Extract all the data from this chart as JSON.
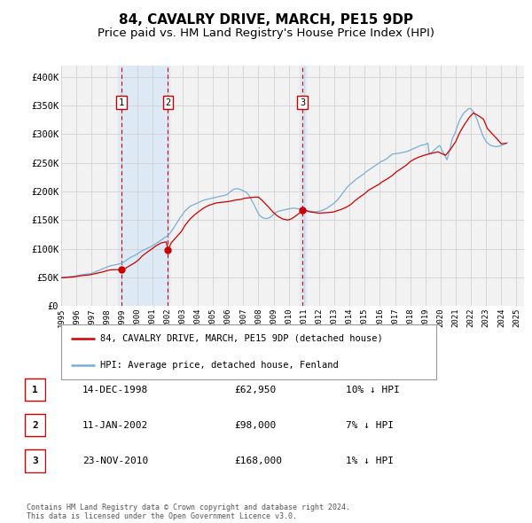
{
  "title": "84, CAVALRY DRIVE, MARCH, PE15 9DP",
  "subtitle": "Price paid vs. HM Land Registry's House Price Index (HPI)",
  "title_fontsize": 11,
  "subtitle_fontsize": 9.5,
  "xlim": [
    1995.0,
    2025.5
  ],
  "ylim": [
    0,
    420000
  ],
  "yticks": [
    0,
    50000,
    100000,
    150000,
    200000,
    250000,
    300000,
    350000,
    400000
  ],
  "ytick_labels": [
    "£0",
    "£50K",
    "£100K",
    "£150K",
    "£200K",
    "£250K",
    "£300K",
    "£350K",
    "£400K"
  ],
  "xtick_years": [
    1995,
    1996,
    1997,
    1998,
    1999,
    2000,
    2001,
    2002,
    2003,
    2004,
    2005,
    2006,
    2007,
    2008,
    2009,
    2010,
    2011,
    2012,
    2013,
    2014,
    2015,
    2016,
    2017,
    2018,
    2019,
    2020,
    2021,
    2022,
    2023,
    2024,
    2025
  ],
  "sale_color": "#cc0000",
  "hpi_color": "#7aadd4",
  "highlight_band_color": "#ddeaf5",
  "grid_color": "#cccccc",
  "legend_label_sale": "84, CAVALRY DRIVE, MARCH, PE15 9DP (detached house)",
  "legend_label_hpi": "HPI: Average price, detached house, Fenland",
  "transactions": [
    {
      "num": 1,
      "date": "14-DEC-1998",
      "price": 62950,
      "pct": "10%",
      "x_year": 1998.96
    },
    {
      "num": 2,
      "date": "11-JAN-2002",
      "price": 98000,
      "pct": "7%",
      "x_year": 2002.04
    },
    {
      "num": 3,
      "date": "23-NOV-2010",
      "price": 168000,
      "pct": "1%",
      "x_year": 2010.9
    }
  ],
  "background_color": "#ffffff",
  "plot_bg_color": "#f2f2f2",
  "copyright_text": "Contains HM Land Registry data © Crown copyright and database right 2024.\nThis data is licensed under the Open Government Licence v3.0.",
  "hpi_data_x": [
    1995.0,
    1995.08,
    1995.17,
    1995.25,
    1995.33,
    1995.42,
    1995.5,
    1995.58,
    1995.67,
    1995.75,
    1995.83,
    1995.92,
    1996.0,
    1996.08,
    1996.17,
    1996.25,
    1996.33,
    1996.42,
    1996.5,
    1996.58,
    1996.67,
    1996.75,
    1996.83,
    1996.92,
    1997.0,
    1997.08,
    1997.17,
    1997.25,
    1997.33,
    1997.42,
    1997.5,
    1997.58,
    1997.67,
    1997.75,
    1997.83,
    1997.92,
    1998.0,
    1998.08,
    1998.17,
    1998.25,
    1998.33,
    1998.42,
    1998.5,
    1998.58,
    1998.67,
    1998.75,
    1998.83,
    1998.92,
    1999.0,
    1999.08,
    1999.17,
    1999.25,
    1999.33,
    1999.42,
    1999.5,
    1999.58,
    1999.67,
    1999.75,
    1999.83,
    1999.92,
    2000.0,
    2000.08,
    2000.17,
    2000.25,
    2000.33,
    2000.42,
    2000.5,
    2000.58,
    2000.67,
    2000.75,
    2000.83,
    2000.92,
    2001.0,
    2001.08,
    2001.17,
    2001.25,
    2001.33,
    2001.42,
    2001.5,
    2001.58,
    2001.67,
    2001.75,
    2001.83,
    2001.92,
    2002.0,
    2002.08,
    2002.17,
    2002.25,
    2002.33,
    2002.42,
    2002.5,
    2002.58,
    2002.67,
    2002.75,
    2002.83,
    2002.92,
    2003.0,
    2003.08,
    2003.17,
    2003.25,
    2003.33,
    2003.42,
    2003.5,
    2003.58,
    2003.67,
    2003.75,
    2003.83,
    2003.92,
    2004.0,
    2004.08,
    2004.17,
    2004.25,
    2004.33,
    2004.42,
    2004.5,
    2004.58,
    2004.67,
    2004.75,
    2004.83,
    2004.92,
    2005.0,
    2005.08,
    2005.17,
    2005.25,
    2005.33,
    2005.42,
    2005.5,
    2005.58,
    2005.67,
    2005.75,
    2005.83,
    2005.92,
    2006.0,
    2006.08,
    2006.17,
    2006.25,
    2006.33,
    2006.42,
    2006.5,
    2006.58,
    2006.67,
    2006.75,
    2006.83,
    2006.92,
    2007.0,
    2007.08,
    2007.17,
    2007.25,
    2007.33,
    2007.42,
    2007.5,
    2007.58,
    2007.67,
    2007.75,
    2007.83,
    2007.92,
    2008.0,
    2008.08,
    2008.17,
    2008.25,
    2008.33,
    2008.42,
    2008.5,
    2008.58,
    2008.67,
    2008.75,
    2008.83,
    2008.92,
    2009.0,
    2009.08,
    2009.17,
    2009.25,
    2009.33,
    2009.42,
    2009.5,
    2009.58,
    2009.67,
    2009.75,
    2009.83,
    2009.92,
    2010.0,
    2010.08,
    2010.17,
    2010.25,
    2010.33,
    2010.42,
    2010.5,
    2010.58,
    2010.67,
    2010.75,
    2010.83,
    2010.92,
    2011.0,
    2011.08,
    2011.17,
    2011.25,
    2011.33,
    2011.42,
    2011.5,
    2011.58,
    2011.67,
    2011.75,
    2011.83,
    2011.92,
    2012.0,
    2012.08,
    2012.17,
    2012.25,
    2012.33,
    2012.42,
    2012.5,
    2012.58,
    2012.67,
    2012.75,
    2012.83,
    2012.92,
    2013.0,
    2013.08,
    2013.17,
    2013.25,
    2013.33,
    2013.42,
    2013.5,
    2013.58,
    2013.67,
    2013.75,
    2013.83,
    2013.92,
    2014.0,
    2014.08,
    2014.17,
    2014.25,
    2014.33,
    2014.42,
    2014.5,
    2014.58,
    2014.67,
    2014.75,
    2014.83,
    2014.92,
    2015.0,
    2015.08,
    2015.17,
    2015.25,
    2015.33,
    2015.42,
    2015.5,
    2015.58,
    2015.67,
    2015.75,
    2015.83,
    2015.92,
    2016.0,
    2016.08,
    2016.17,
    2016.25,
    2016.33,
    2016.42,
    2016.5,
    2016.58,
    2016.67,
    2016.75,
    2016.83,
    2016.92,
    2017.0,
    2017.08,
    2017.17,
    2017.25,
    2017.33,
    2017.42,
    2017.5,
    2017.58,
    2017.67,
    2017.75,
    2017.83,
    2017.92,
    2018.0,
    2018.08,
    2018.17,
    2018.25,
    2018.33,
    2018.42,
    2018.5,
    2018.58,
    2018.67,
    2018.75,
    2018.83,
    2018.92,
    2019.0,
    2019.08,
    2019.17,
    2019.25,
    2019.33,
    2019.42,
    2019.5,
    2019.58,
    2019.67,
    2019.75,
    2019.83,
    2019.92,
    2020.0,
    2020.08,
    2020.17,
    2020.25,
    2020.33,
    2020.42,
    2020.5,
    2020.58,
    2020.67,
    2020.75,
    2020.83,
    2020.92,
    2021.0,
    2021.08,
    2021.17,
    2021.25,
    2021.33,
    2021.42,
    2021.5,
    2021.58,
    2021.67,
    2021.75,
    2021.83,
    2021.92,
    2022.0,
    2022.08,
    2022.17,
    2022.25,
    2022.33,
    2022.42,
    2022.5,
    2022.58,
    2022.67,
    2022.75,
    2022.83,
    2022.92,
    2023.0,
    2023.08,
    2023.17,
    2023.25,
    2023.33,
    2023.42,
    2023.5,
    2023.58,
    2023.67,
    2023.75,
    2023.83,
    2023.92,
    2024.0,
    2024.08,
    2024.17,
    2024.25,
    2024.33,
    2024.42
  ],
  "hpi_data_y": [
    49500,
    49800,
    50000,
    50200,
    50300,
    50500,
    50700,
    50900,
    51200,
    51500,
    51700,
    52000,
    52500,
    53000,
    53500,
    54000,
    54500,
    55000,
    55200,
    55400,
    55600,
    55800,
    56000,
    56500,
    57000,
    57800,
    58500,
    59500,
    60500,
    61500,
    62200,
    63000,
    64000,
    65000,
    66000,
    67000,
    67500,
    68500,
    69500,
    70000,
    70500,
    71000,
    71500,
    72000,
    72500,
    73000,
    73500,
    74000,
    74500,
    76000,
    77500,
    79000,
    80500,
    82000,
    83500,
    85000,
    86000,
    87000,
    88000,
    89500,
    90500,
    92000,
    93500,
    95000,
    96500,
    97500,
    98500,
    99500,
    100500,
    101500,
    102500,
    103500,
    104500,
    106000,
    107500,
    109000,
    110500,
    112000,
    113500,
    115000,
    116500,
    118000,
    119500,
    121000,
    122000,
    124500,
    127000,
    130000,
    133000,
    136500,
    140000,
    143500,
    147000,
    150500,
    154000,
    157000,
    160000,
    163000,
    166000,
    168000,
    170000,
    172000,
    174000,
    175000,
    176000,
    177000,
    178000,
    179000,
    180000,
    181000,
    182000,
    183000,
    184000,
    185000,
    185500,
    186000,
    186500,
    187000,
    187500,
    188000,
    188500,
    189000,
    189500,
    190000,
    190500,
    191000,
    191500,
    192000,
    192500,
    193000,
    193500,
    194500,
    196000,
    198000,
    200000,
    201500,
    203000,
    204000,
    204500,
    204800,
    204500,
    204000,
    203000,
    202000,
    201000,
    200000,
    199000,
    197000,
    194500,
    191000,
    187000,
    183000,
    179000,
    174500,
    170000,
    165000,
    161000,
    158000,
    156000,
    154500,
    153500,
    153000,
    152500,
    153000,
    153500,
    154500,
    156000,
    158000,
    160000,
    162000,
    163500,
    164500,
    165500,
    166000,
    166500,
    167000,
    167500,
    168000,
    168500,
    169000,
    169500,
    170000,
    170200,
    170500,
    170800,
    170500,
    170200,
    170000,
    169500,
    169000,
    168500,
    168000,
    167500,
    167000,
    166500,
    166000,
    165800,
    165500,
    165200,
    165000,
    164800,
    164500,
    164500,
    165000,
    165500,
    166000,
    166500,
    167500,
    168500,
    169500,
    170500,
    172000,
    173500,
    175000,
    176500,
    178000,
    180000,
    182000,
    184000,
    186500,
    189000,
    192000,
    195000,
    198000,
    201000,
    204000,
    207000,
    209500,
    211500,
    213000,
    215000,
    217000,
    219000,
    221000,
    222500,
    224000,
    225500,
    227000,
    228500,
    230000,
    232000,
    234000,
    235500,
    237000,
    238500,
    240000,
    241500,
    243000,
    244500,
    246000,
    247500,
    249000,
    250500,
    252000,
    253000,
    254000,
    255000,
    256500,
    258000,
    260000,
    262000,
    263500,
    265000,
    265500,
    265800,
    266000,
    266200,
    266500,
    267000,
    267500,
    268000,
    268500,
    269000,
    269500,
    270000,
    271000,
    272000,
    273000,
    274000,
    275000,
    276000,
    277000,
    278000,
    279000,
    280000,
    280500,
    281000,
    281500,
    282000,
    283000,
    284000,
    265000,
    266000,
    268000,
    270000,
    272000,
    274000,
    276000,
    278000,
    280000,
    278000,
    272000,
    268000,
    265000,
    260000,
    255000,
    262000,
    270000,
    280000,
    290000,
    295000,
    300000,
    305000,
    312000,
    318000,
    324000,
    328000,
    332000,
    336000,
    338000,
    340000,
    342000,
    344000,
    345000,
    344000,
    342000,
    339000,
    335000,
    330000,
    325000,
    318000,
    312000,
    306000,
    300000,
    295000,
    291000,
    287000,
    285000,
    283000,
    281000,
    280000,
    279500,
    279000,
    278500,
    278000,
    278500,
    279000,
    279500,
    280000,
    281000,
    282000,
    283000,
    284000,
    285000
  ],
  "sale_data_x": [
    1995.0,
    1995.17,
    1995.42,
    1995.75,
    1996.0,
    1996.25,
    1996.58,
    1996.92,
    1997.17,
    1997.42,
    1997.75,
    1998.0,
    1998.25,
    1998.58,
    1998.96,
    1999.25,
    1999.5,
    1999.83,
    2000.08,
    2000.33,
    2000.67,
    2001.0,
    2001.25,
    2001.58,
    2001.92,
    2002.04,
    2002.25,
    2002.58,
    2002.92,
    2003.17,
    2003.5,
    2003.83,
    2004.08,
    2004.33,
    2004.67,
    2005.0,
    2005.25,
    2005.58,
    2005.92,
    2006.17,
    2006.5,
    2006.83,
    2007.08,
    2007.42,
    2007.75,
    2008.0,
    2008.25,
    2008.58,
    2009.0,
    2009.25,
    2009.58,
    2009.92,
    2010.17,
    2010.5,
    2010.83,
    2010.9,
    2011.08,
    2011.42,
    2011.75,
    2012.0,
    2012.25,
    2012.58,
    2012.92,
    2013.17,
    2013.5,
    2013.83,
    2014.08,
    2014.33,
    2014.67,
    2015.0,
    2015.25,
    2015.58,
    2015.92,
    2016.17,
    2016.5,
    2016.83,
    2017.08,
    2017.42,
    2017.75,
    2018.0,
    2018.25,
    2018.58,
    2018.92,
    2019.17,
    2019.5,
    2019.83,
    2020.08,
    2020.33,
    2020.67,
    2021.0,
    2021.25,
    2021.58,
    2021.92,
    2022.17,
    2022.5,
    2022.83,
    2023.08,
    2023.42,
    2023.75,
    2024.0,
    2024.33
  ],
  "sale_data_y": [
    49000,
    49500,
    50000,
    50500,
    51500,
    52500,
    53500,
    54500,
    56000,
    57500,
    59500,
    61500,
    63000,
    63500,
    62950,
    66000,
    70000,
    75000,
    80000,
    87000,
    94000,
    100000,
    105000,
    110000,
    112000,
    98000,
    110000,
    120000,
    130000,
    141000,
    152000,
    160000,
    165000,
    170000,
    175000,
    178000,
    180000,
    181000,
    182000,
    183000,
    185000,
    186000,
    188000,
    189000,
    190000,
    190000,
    184000,
    175000,
    163000,
    157000,
    152000,
    150000,
    152000,
    158000,
    165000,
    168000,
    167000,
    164000,
    163000,
    162000,
    162500,
    163000,
    164000,
    166000,
    169000,
    173000,
    177000,
    183000,
    190000,
    196000,
    202000,
    207000,
    212000,
    217000,
    222000,
    228000,
    234000,
    240000,
    246000,
    252000,
    256000,
    260000,
    263000,
    265000,
    267000,
    269000,
    266000,
    263000,
    274000,
    287000,
    302000,
    317000,
    330000,
    337000,
    332000,
    326000,
    310000,
    300000,
    291000,
    283000,
    284000
  ]
}
